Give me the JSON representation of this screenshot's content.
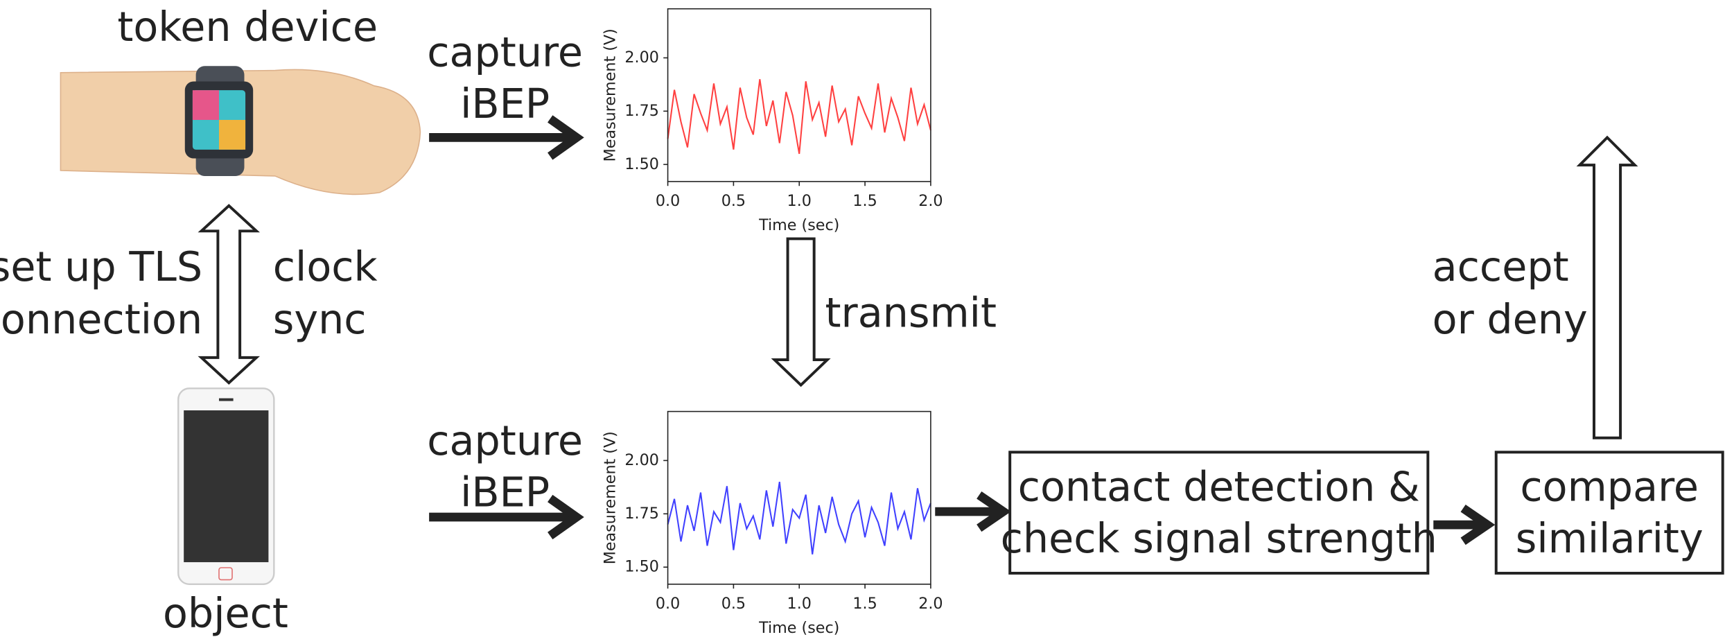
{
  "diagram": {
    "token_label": "token device",
    "object_label": "object",
    "link_left": [
      "set up TLS",
      "connection"
    ],
    "link_right": [
      "clock",
      "sync"
    ],
    "capture_top": [
      "capture",
      "iBEP"
    ],
    "capture_bottom": [
      "capture",
      "iBEP"
    ],
    "transmit": "transmit",
    "detect_box": [
      "contact detection &",
      "check signal strength"
    ],
    "compare_box": [
      "compare",
      "similarity"
    ],
    "decision": [
      "accept",
      "or deny"
    ]
  },
  "chart_data": [
    {
      "type": "line",
      "xlabel": "Time (sec)",
      "ylabel": "Measurement (V)",
      "x": [
        0,
        0.05,
        0.1,
        0.15,
        0.2,
        0.25,
        0.3,
        0.35,
        0.4,
        0.45,
        0.5,
        0.55,
        0.6,
        0.65,
        0.7,
        0.75,
        0.8,
        0.85,
        0.9,
        0.95,
        1,
        1.05,
        1.1,
        1.15,
        1.2,
        1.25,
        1.3,
        1.35,
        1.4,
        1.45,
        1.5,
        1.55,
        1.6,
        1.65,
        1.7,
        1.75,
        1.8,
        1.85,
        1.9,
        1.95,
        2
      ],
      "series": [
        {
          "color": "#ff4040",
          "values": [
            1.62,
            1.85,
            1.7,
            1.58,
            1.83,
            1.74,
            1.66,
            1.88,
            1.69,
            1.77,
            1.57,
            1.86,
            1.72,
            1.64,
            1.9,
            1.68,
            1.8,
            1.6,
            1.84,
            1.73,
            1.55,
            1.89,
            1.71,
            1.79,
            1.63,
            1.87,
            1.7,
            1.76,
            1.59,
            1.82,
            1.74,
            1.67,
            1.88,
            1.65,
            1.81,
            1.72,
            1.61,
            1.86,
            1.69,
            1.78,
            1.66
          ]
        }
      ],
      "xlim": [
        0,
        2
      ],
      "ylim": [
        1.42,
        2.23
      ],
      "xticks": [
        {
          "value": 0,
          "label": "0.0"
        },
        {
          "value": 0.5,
          "label": "0.5"
        },
        {
          "value": 1,
          "label": "1.0"
        },
        {
          "value": 1.5,
          "label": "1.5"
        },
        {
          "value": 2,
          "label": "2.0"
        }
      ],
      "yticks": [
        {
          "value": 1.5,
          "label": "1.50"
        },
        {
          "value": 1.75,
          "label": "1.75"
        },
        {
          "value": 2,
          "label": "2.00"
        }
      ]
    },
    {
      "type": "line",
      "xlabel": "Time (sec)",
      "ylabel": "Measurement (V)",
      "x": [
        0,
        0.05,
        0.1,
        0.15,
        0.2,
        0.25,
        0.3,
        0.35,
        0.4,
        0.45,
        0.5,
        0.55,
        0.6,
        0.65,
        0.7,
        0.75,
        0.8,
        0.85,
        0.9,
        0.95,
        1,
        1.05,
        1.1,
        1.15,
        1.2,
        1.25,
        1.3,
        1.35,
        1.4,
        1.45,
        1.5,
        1.55,
        1.6,
        1.65,
        1.7,
        1.75,
        1.8,
        1.85,
        1.9,
        1.95,
        2
      ],
      "series": [
        {
          "color": "#4040ff",
          "values": [
            1.7,
            1.82,
            1.62,
            1.79,
            1.67,
            1.85,
            1.6,
            1.76,
            1.71,
            1.88,
            1.58,
            1.8,
            1.68,
            1.74,
            1.63,
            1.86,
            1.69,
            1.9,
            1.61,
            1.77,
            1.73,
            1.84,
            1.56,
            1.79,
            1.66,
            1.83,
            1.7,
            1.62,
            1.75,
            1.81,
            1.64,
            1.78,
            1.71,
            1.6,
            1.85,
            1.68,
            1.76,
            1.63,
            1.87,
            1.72,
            1.8
          ]
        }
      ],
      "xlim": [
        0,
        2
      ],
      "ylim": [
        1.42,
        2.23
      ],
      "xticks": [
        {
          "value": 0,
          "label": "0.0"
        },
        {
          "value": 0.5,
          "label": "0.5"
        },
        {
          "value": 1,
          "label": "1.0"
        },
        {
          "value": 1.5,
          "label": "1.5"
        },
        {
          "value": 2,
          "label": "2.0"
        }
      ],
      "yticks": [
        {
          "value": 1.5,
          "label": "1.50"
        },
        {
          "value": 1.75,
          "label": "1.75"
        },
        {
          "value": 2,
          "label": "2.00"
        }
      ]
    }
  ]
}
